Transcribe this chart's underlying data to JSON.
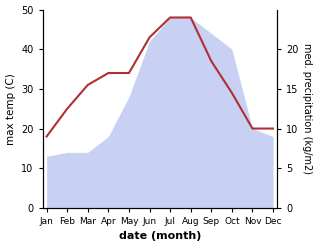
{
  "months": [
    "Jan",
    "Feb",
    "Mar",
    "Apr",
    "May",
    "Jun",
    "Jul",
    "Aug",
    "Sep",
    "Oct",
    "Nov",
    "Dec"
  ],
  "month_indices": [
    0,
    1,
    2,
    3,
    4,
    5,
    6,
    7,
    8,
    9,
    10,
    11
  ],
  "temperature": [
    18,
    25,
    31,
    34,
    34,
    43,
    48,
    48,
    37,
    29,
    20,
    20
  ],
  "precipitation_raw": [
    6.5,
    7,
    7,
    9,
    14,
    21,
    24,
    24,
    22,
    20,
    10,
    9
  ],
  "temp_color": "#b03030",
  "precip_fill_color": "#c8d0f4",
  "temp_ylim": [
    0,
    50
  ],
  "precip_ylim": [
    0,
    25
  ],
  "temp_yticks": [
    0,
    10,
    20,
    30,
    40,
    50
  ],
  "precip_yticks": [
    0,
    5,
    10,
    15,
    20
  ],
  "xlabel": "date (month)",
  "ylabel_left": "max temp (C)",
  "ylabel_right": "med. precipitation (kg/m2)",
  "figsize": [
    3.18,
    2.47
  ],
  "dpi": 100
}
